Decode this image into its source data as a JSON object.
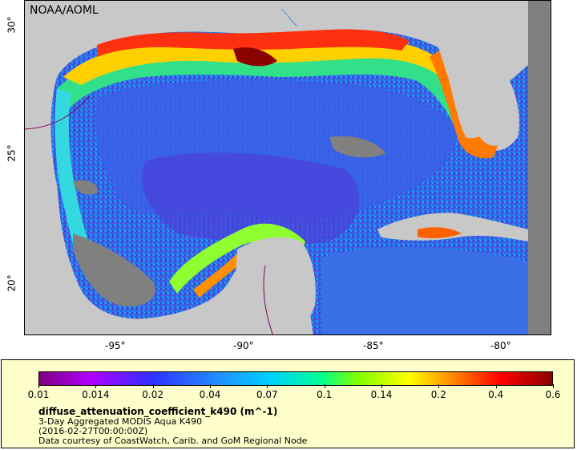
{
  "map": {
    "credit": "NOAA/AOML",
    "x_ticks": [
      "-95°",
      "-90°",
      "-85°",
      "-80°"
    ],
    "y_ticks": [
      "30°",
      "25°",
      "20°"
    ]
  },
  "legend": {
    "colorbar_labels": [
      "0.01",
      "0.014",
      "0.02",
      "0.04",
      "0.07",
      "0.1",
      "0.14",
      "0.2",
      "0.4",
      "0.6"
    ],
    "variable": "diffuse_attenuation_coefficient_k490 (m^-1)",
    "product": "3-Day Aggregated MODIS Aqua K490",
    "time": "(2016-02-27T00:00:00Z)",
    "source": "Data courtesy of CoastWatch, Carib. and GoM Regional Node"
  },
  "colors": {
    "land": "#c8c8c8",
    "nodata": "#808080",
    "panel": "#ffffcc"
  }
}
